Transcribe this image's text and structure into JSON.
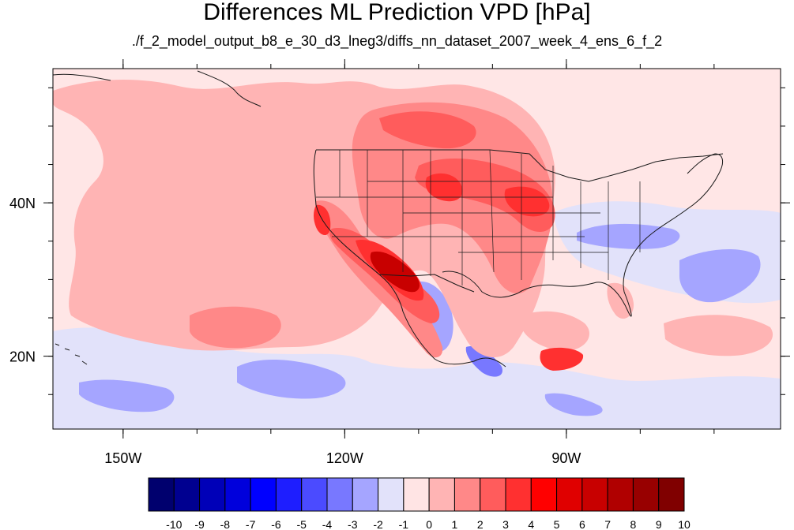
{
  "title": "Differences ML Prediction VPD [hPa]",
  "subtitle": "./f_2_model_output_b8_e_30_d3_lneg3/diffs_nn_dataset_2007_week_4_ens_6_f_2",
  "map": {
    "lon_range": [
      -159.5,
      -61
    ],
    "lat_range": [
      10.5,
      57.5
    ],
    "lon_ticks": [
      {
        "value": -150,
        "label": "150W"
      },
      {
        "value": -120,
        "label": "120W"
      },
      {
        "value": -90,
        "label": "90W"
      }
    ],
    "lat_ticks": [
      {
        "value": 40,
        "label": "40N"
      },
      {
        "value": 20,
        "label": "20N"
      }
    ]
  },
  "colorbar": {
    "labels": [
      "-10",
      "-9",
      "-8",
      "-7",
      "-6",
      "-5",
      "-4",
      "-3",
      "-2",
      "-1",
      "0",
      "1",
      "2",
      "3",
      "4",
      "5",
      "6",
      "7",
      "8",
      "9",
      "10"
    ],
    "colors": [
      "#00006e",
      "#000090",
      "#0000b8",
      "#0000dc",
      "#0000ff",
      "#1e1eff",
      "#4b4bff",
      "#7878ff",
      "#a5a5ff",
      "#e2e2fa",
      "#ffe4e4",
      "#ffb4b4",
      "#ff8888",
      "#ff5c5c",
      "#ff3030",
      "#ff0000",
      "#e00000",
      "#c80000",
      "#b00000",
      "#980000",
      "#800000"
    ]
  },
  "colors": {
    "background_field": "#ffe6e6",
    "warm_light": "#ffb4b4",
    "warm_mid": "#ff8888",
    "warm_strong": "#ff3030",
    "warm_max": "#c80000",
    "cool_light": "#e2e2fa",
    "cool_mid": "#a5a5ff",
    "cool_strong": "#4b4bff"
  }
}
